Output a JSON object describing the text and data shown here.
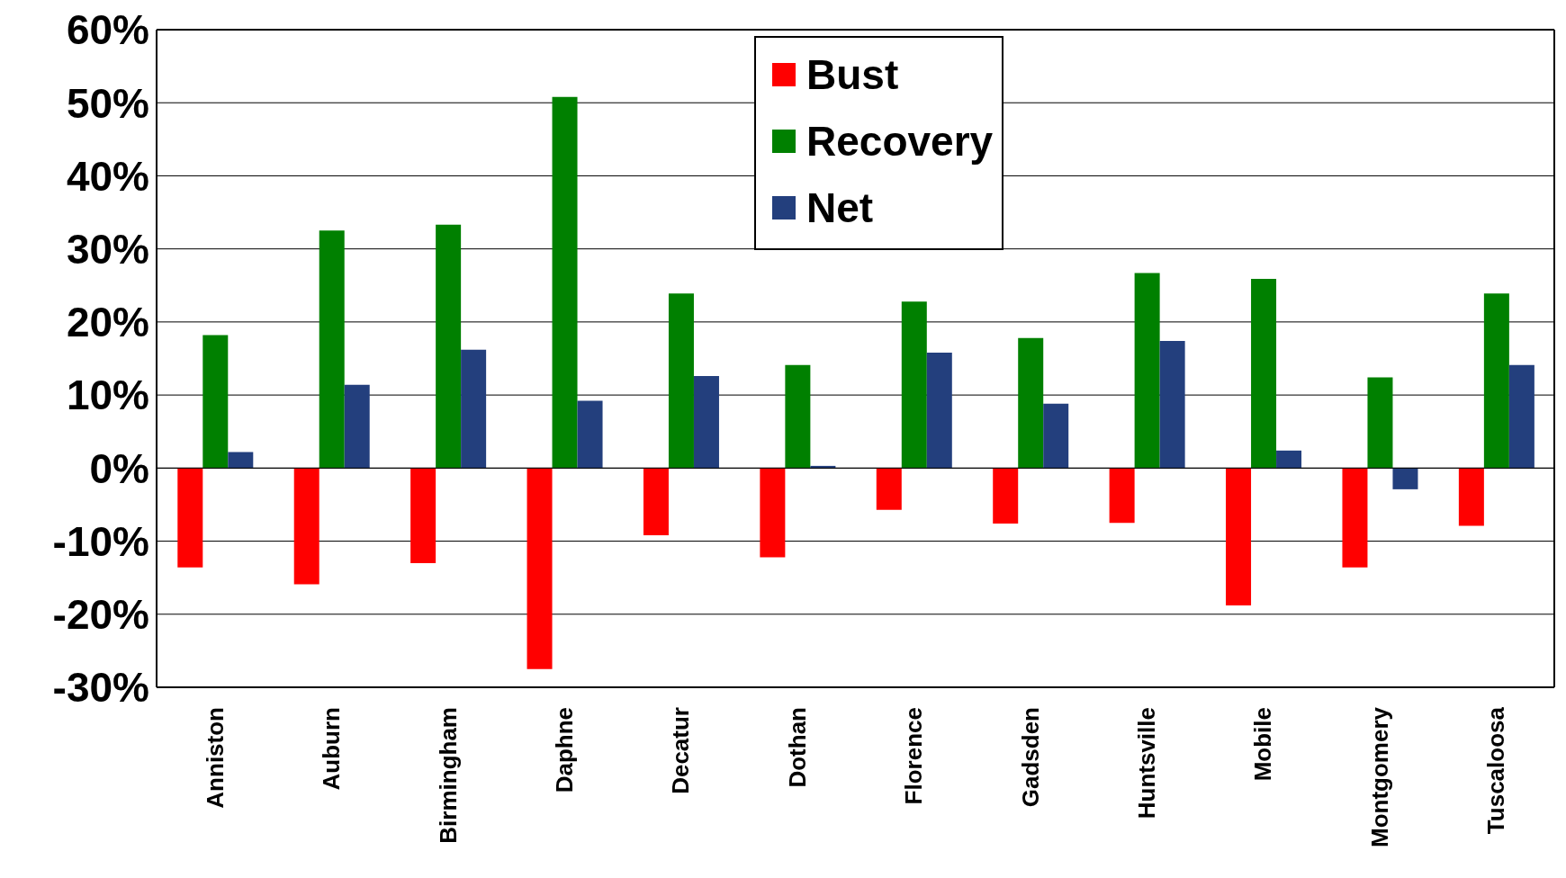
{
  "chart_data": {
    "type": "bar",
    "categories": [
      "Anniston",
      "Auburn",
      "Birmingham",
      "Daphne",
      "Decatur",
      "Dothan",
      "Florence",
      "Gadsden",
      "Huntsville",
      "Mobile",
      "Montgomery",
      "Tuscaloosa"
    ],
    "series": [
      {
        "name": "Bust",
        "color": "#ff0000",
        "values": [
          -13.6,
          -15.9,
          -13.0,
          -27.5,
          -9.2,
          -12.2,
          -5.7,
          -7.6,
          -7.5,
          -18.8,
          -13.6,
          -7.9
        ]
      },
      {
        "name": "Recovery",
        "color": "#008000",
        "values": [
          18.2,
          32.5,
          33.3,
          50.8,
          23.9,
          14.1,
          22.8,
          17.8,
          26.7,
          25.9,
          12.4,
          23.9
        ]
      },
      {
        "name": "Net",
        "color": "#233f7d",
        "values": [
          2.2,
          11.4,
          16.2,
          9.2,
          12.6,
          0.3,
          15.8,
          8.8,
          17.4,
          2.4,
          -2.9,
          14.1
        ]
      }
    ],
    "ylim": [
      -30,
      60
    ],
    "yticks": [
      {
        "value": -30,
        "label": "-30%"
      },
      {
        "value": -20,
        "label": "-20%"
      },
      {
        "value": -10,
        "label": "-10%"
      },
      {
        "value": 0,
        "label": "0%"
      },
      {
        "value": 10,
        "label": "10%"
      },
      {
        "value": 20,
        "label": "20%"
      },
      {
        "value": 30,
        "label": "30%"
      },
      {
        "value": 40,
        "label": "40%"
      },
      {
        "value": 50,
        "label": "50%"
      },
      {
        "value": 60,
        "label": "60%"
      }
    ],
    "grid": "y",
    "legend": "top"
  }
}
